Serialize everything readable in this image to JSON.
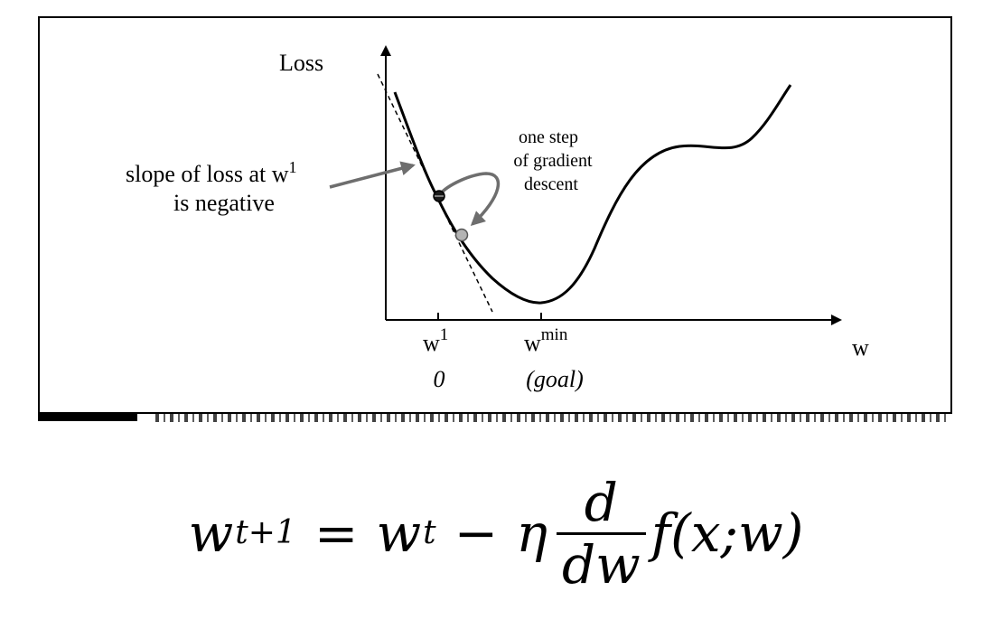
{
  "diagram": {
    "y_axis_label": "Loss",
    "x_axis_label": "w",
    "annotation_slope_line1": "slope of loss at w",
    "annotation_slope_superscript": "1",
    "annotation_slope_line2": "is negative",
    "annotation_step_line1": "one step",
    "annotation_step_line2": "of gradient",
    "annotation_step_line3": "descent",
    "tick_w1_base": "w",
    "tick_w1_superscript": "1",
    "tick_wmin_base": "w",
    "tick_wmin_superscript": "min",
    "tick_w1_sublabel": "0",
    "tick_wmin_sublabel": "(goal)"
  },
  "formula": {
    "lhs_var": "w",
    "lhs_sup": "t+1",
    "equals": "=",
    "rhs_var": "w",
    "rhs_sup": "t",
    "minus": "−",
    "eta": "η",
    "frac_num": "d",
    "frac_den": "dw",
    "func": "f(x;w)"
  }
}
